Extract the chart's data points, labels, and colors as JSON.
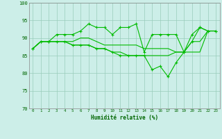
{
  "xlabel": "Humidité relative (%)",
  "xlim": [
    -0.5,
    23.5
  ],
  "ylim": [
    70,
    100
  ],
  "yticks": [
    70,
    75,
    80,
    85,
    90,
    95,
    100
  ],
  "xticks": [
    0,
    1,
    2,
    3,
    4,
    5,
    6,
    7,
    8,
    9,
    10,
    11,
    12,
    13,
    14,
    15,
    16,
    17,
    18,
    19,
    20,
    21,
    22,
    23
  ],
  "background_color": "#cceee8",
  "grid_color": "#99ccbb",
  "line_color": "#00bb00",
  "series": [
    [
      87,
      89,
      89,
      91,
      91,
      91,
      92,
      94,
      93,
      93,
      91,
      93,
      93,
      94,
      86,
      91,
      91,
      91,
      91,
      86,
      91,
      93,
      92,
      92
    ],
    [
      87,
      89,
      89,
      89,
      89,
      89,
      90,
      90,
      89,
      88,
      88,
      88,
      88,
      88,
      87,
      87,
      87,
      87,
      86,
      86,
      89,
      89,
      92,
      92
    ],
    [
      87,
      89,
      89,
      89,
      89,
      88,
      88,
      88,
      87,
      87,
      86,
      86,
      85,
      85,
      85,
      85,
      85,
      85,
      86,
      86,
      86,
      86,
      92,
      92
    ],
    [
      87,
      89,
      89,
      89,
      89,
      88,
      88,
      88,
      87,
      87,
      86,
      85,
      85,
      85,
      85,
      81,
      82,
      79,
      83,
      86,
      89,
      93,
      92,
      92
    ]
  ],
  "markers": [
    true,
    false,
    false,
    true
  ]
}
